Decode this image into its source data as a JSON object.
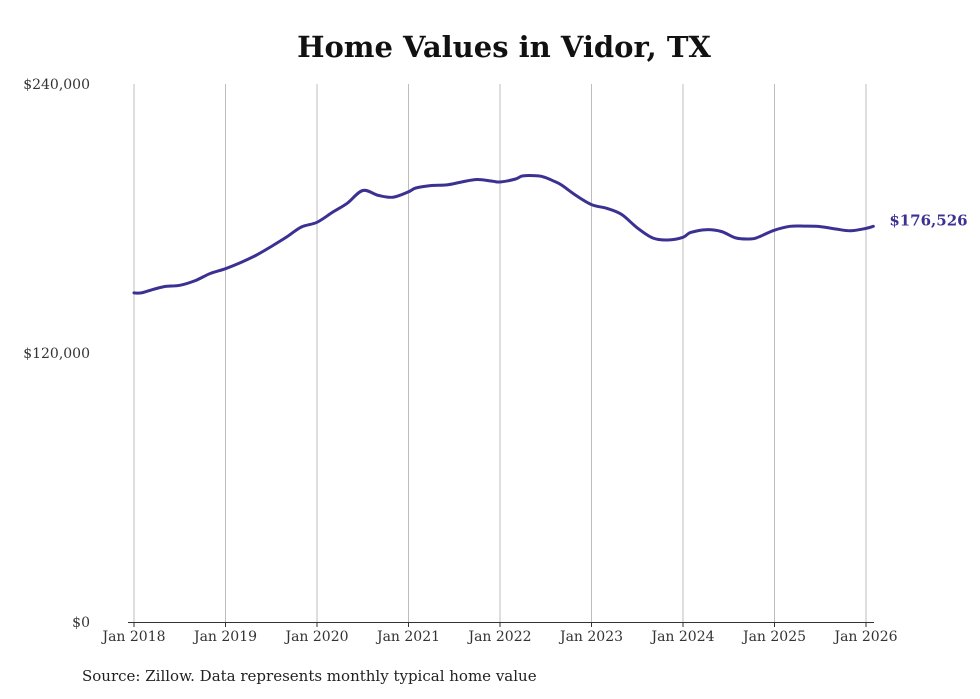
{
  "colors": {
    "line": "#3b3192",
    "grid": "#bdbdbd",
    "text": "#333333",
    "baseline": "#333333"
  },
  "chart_data": {
    "type": "line",
    "title": "Home Values in Vidor, TX",
    "xlabel": "",
    "ylabel": "",
    "ylim": [
      0,
      240000
    ],
    "y_ticks": [
      {
        "value": 0,
        "label": "$0"
      },
      {
        "value": 120000,
        "label": "$120,000"
      },
      {
        "value": 240000,
        "label": "$240,000"
      }
    ],
    "x_ticks": [
      {
        "year": 2018,
        "label": "Jan 2018"
      },
      {
        "year": 2019,
        "label": "Jan 2019"
      },
      {
        "year": 2020,
        "label": "Jan 2020"
      },
      {
        "year": 2021,
        "label": "Jan 2021"
      },
      {
        "year": 2022,
        "label": "Jan 2022"
      },
      {
        "year": 2023,
        "label": "Jan 2023"
      },
      {
        "year": 2024,
        "label": "Jan 2024"
      },
      {
        "year": 2025,
        "label": "Jan 2025"
      },
      {
        "year": 2026,
        "label": "Jan 2026"
      }
    ],
    "series": [
      {
        "name": "Typical home value",
        "x": [
          2018.0,
          2018.08,
          2018.17,
          2018.33,
          2018.5,
          2018.67,
          2018.83,
          2019.0,
          2019.17,
          2019.33,
          2019.5,
          2019.67,
          2019.83,
          2020.0,
          2020.17,
          2020.33,
          2020.5,
          2020.67,
          2020.83,
          2021.0,
          2021.08,
          2021.25,
          2021.42,
          2021.58,
          2021.75,
          2021.92,
          2022.0,
          2022.17,
          2022.25,
          2022.42,
          2022.5,
          2022.58,
          2022.67,
          2022.83,
          2023.0,
          2023.17,
          2023.33,
          2023.5,
          2023.67,
          2023.83,
          2024.0,
          2024.08,
          2024.25,
          2024.42,
          2024.58,
          2024.75,
          2024.83,
          2025.0,
          2025.17,
          2025.33,
          2025.5,
          2025.67,
          2025.83,
          2026.0,
          2026.08
        ],
        "values": [
          146800,
          146800,
          147900,
          149600,
          150200,
          152300,
          155400,
          157600,
          160400,
          163500,
          167500,
          171800,
          176200,
          178300,
          182800,
          186800,
          192500,
          190300,
          189500,
          191900,
          193600,
          194700,
          195000,
          196300,
          197400,
          196600,
          196300,
          197600,
          199000,
          199000,
          198200,
          196800,
          195000,
          190300,
          186200,
          184500,
          181800,
          175800,
          171300,
          170400,
          171600,
          173700,
          175000,
          174200,
          171300,
          170900,
          171800,
          174800,
          176500,
          176600,
          176400,
          175300,
          174500,
          175600,
          176526
        ]
      }
    ],
    "end_label": "$176,526",
    "source": "Source: Zillow. Data represents monthly typical home value"
  }
}
